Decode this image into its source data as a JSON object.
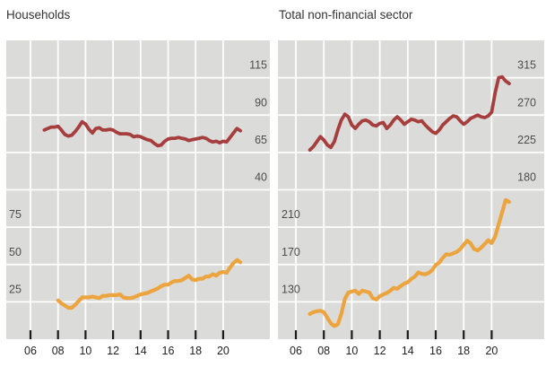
{
  "window": {
    "background": "#ffffff"
  },
  "colors": {
    "plot_background": "#dbdbd9",
    "gridline": "#ffffff",
    "ratio_line": "#a63e3e",
    "amount_line": "#eca43e",
    "y_label_text": "#4d4d4d",
    "x_label_text": "#222222",
    "tick_mark": "#1a1a1a",
    "title_text": "#333333"
  },
  "chart_data": [
    {
      "type": "line",
      "title": "Households",
      "grid": true,
      "legend": false,
      "x_axis": {
        "tick_labels": [
          "06",
          "08",
          "10",
          "12",
          "14",
          "16",
          "18",
          "20"
        ],
        "tick_years": [
          2006,
          2008,
          2010,
          2012,
          2014,
          2016,
          2018,
          2020
        ]
      },
      "right_axis": {
        "tick_values": [
          115,
          90,
          65,
          40
        ]
      },
      "left_axis": {
        "tick_values": [
          75,
          50,
          25
        ]
      },
      "series": [
        {
          "name": "dark_red_upper_line",
          "axis": "right",
          "color_key": "ratio_line",
          "frequency": "quarterly",
          "x_start": 2007.0,
          "x_step": 0.25,
          "values": [
            80,
            81,
            82,
            82,
            82.5,
            80,
            77,
            76,
            76.5,
            79,
            82,
            85.5,
            84,
            80.5,
            78,
            81,
            81.5,
            80,
            80,
            80.5,
            80,
            78.5,
            77.5,
            77.5,
            77.5,
            77,
            75.5,
            76,
            75.5,
            74.5,
            73.5,
            73,
            71,
            69.5,
            70,
            72.5,
            74,
            74.5,
            74.5,
            75,
            74.5,
            74,
            73,
            73.5,
            74,
            74.5,
            75,
            74.5,
            73,
            72,
            72.5,
            71.5,
            72.5,
            72,
            75,
            78,
            81,
            79.5
          ]
        },
        {
          "name": "orange_lower_line",
          "axis": "left",
          "color_key": "amount_line",
          "frequency": "quarterly",
          "x_start": 2008.0,
          "x_step": 0.25,
          "values": [
            26,
            24,
            22.5,
            21,
            21,
            23,
            25.5,
            28,
            28,
            28,
            28.5,
            28,
            27.5,
            29,
            29,
            29.5,
            29.5,
            29.5,
            30,
            28,
            27.5,
            27.5,
            28,
            29,
            30,
            30.5,
            31,
            32,
            33,
            34,
            35.5,
            36.5,
            36.5,
            38,
            39,
            39,
            39.5,
            41,
            42.5,
            40,
            39.5,
            40.5,
            40.5,
            42,
            42,
            43.5,
            42.5,
            44.5,
            45,
            44.5,
            48,
            51,
            53,
            51.5
          ]
        }
      ]
    },
    {
      "type": "line",
      "title": "Total non-financial sector",
      "grid": true,
      "legend": false,
      "x_axis": {
        "tick_labels": [
          "06",
          "08",
          "10",
          "12",
          "14",
          "16",
          "18",
          "20"
        ],
        "tick_years": [
          2006,
          2008,
          2010,
          2012,
          2014,
          2016,
          2018,
          2020
        ]
      },
      "right_axis": {
        "tick_values": [
          315,
          270,
          225,
          180
        ]
      },
      "left_axis": {
        "tick_values": [
          210,
          170,
          130
        ]
      },
      "series": [
        {
          "name": "dark_red_upper_line",
          "axis": "right",
          "color_key": "ratio_line",
          "frequency": "quarterly",
          "x_start": 2007.0,
          "x_step": 0.25,
          "values": [
            228,
            232,
            238,
            244,
            240,
            234,
            231,
            238,
            252,
            264,
            271,
            268,
            258,
            254,
            259,
            263,
            264,
            262,
            258,
            257,
            260,
            261,
            254,
            258,
            264,
            268,
            264,
            259,
            262,
            265,
            264,
            262,
            263,
            258,
            254,
            250,
            248,
            252,
            258,
            262,
            266,
            269,
            268,
            263,
            259,
            262,
            266,
            268,
            270,
            268,
            267,
            269,
            273.5,
            297,
            315,
            316,
            311,
            308
          ]
        },
        {
          "name": "orange_lower_line",
          "axis": "left",
          "color_key": "amount_line",
          "frequency": "quarterly",
          "x_start": 2007.0,
          "x_step": 0.25,
          "values": [
            117,
            119,
            120,
            120.5,
            119,
            113,
            107,
            104,
            106,
            117,
            133,
            140,
            141,
            142,
            138.5,
            142,
            141,
            140,
            134,
            132.5,
            136,
            138,
            139.5,
            142,
            145,
            144,
            147,
            149.5,
            151,
            154.5,
            157,
            161.5,
            160,
            159.5,
            161,
            164,
            169.5,
            172,
            177,
            181,
            180.5,
            182,
            183.5,
            186.5,
            191,
            195.5,
            192.5,
            186.5,
            185,
            188,
            192,
            196,
            193,
            200,
            213,
            226,
            239,
            237
          ]
        }
      ]
    }
  ]
}
